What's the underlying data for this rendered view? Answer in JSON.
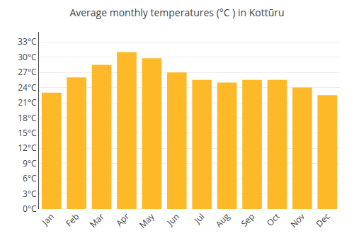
{
  "chart_data": {
    "type": "bar",
    "title": "Average monthly temperatures (°C ) in Kottūru",
    "categories": [
      "Jan",
      "Feb",
      "Mar",
      "Apr",
      "May",
      "Jun",
      "Jul",
      "Aug",
      "Sep",
      "Oct",
      "Nov",
      "Dec"
    ],
    "values": [
      23.0,
      26.0,
      28.5,
      31.0,
      29.8,
      27.0,
      25.5,
      25.0,
      25.5,
      25.5,
      24.0,
      22.5
    ],
    "color": "#FDB927",
    "ylim": [
      0,
      35
    ],
    "yticks": [
      {
        "value": 0,
        "label": "0°C"
      },
      {
        "value": 3,
        "label": "3°C"
      },
      {
        "value": 6,
        "label": "6°C"
      },
      {
        "value": 9,
        "label": "9°C"
      },
      {
        "value": 12,
        "label": "12°C"
      },
      {
        "value": 15,
        "label": "15°C"
      },
      {
        "value": 18,
        "label": "18°C"
      },
      {
        "value": 21,
        "label": "21°C"
      },
      {
        "value": 24,
        "label": "24°C"
      },
      {
        "value": 27,
        "label": "27°C"
      },
      {
        "value": 30,
        "label": "30°C"
      },
      {
        "value": 33,
        "label": "33°C"
      }
    ],
    "grid": true
  }
}
